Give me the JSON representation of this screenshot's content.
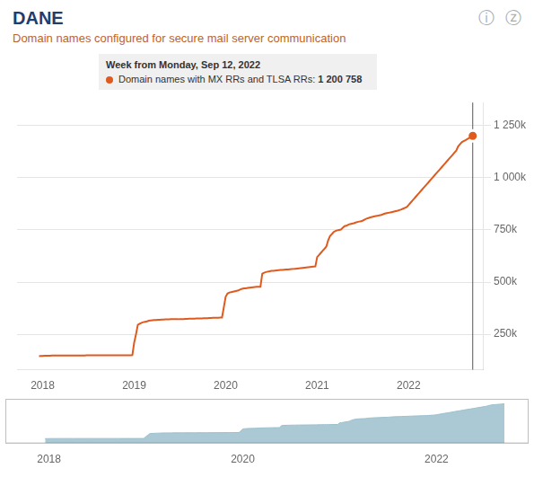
{
  "chart_data": [
    {
      "type": "line",
      "title": "DANE",
      "subtitle": "Domain names configured for secure mail server communication",
      "annotations": [
        "ⓘ",
        "ⓩ"
      ],
      "tooltip": {
        "title": "Week from Monday, Sep 12, 2022",
        "label": "Domain names with MX RRs and TLSA RRs: ",
        "value": 1200758,
        "value_label": "1 200 758"
      },
      "highlight": {
        "x": 2022.7,
        "y": 1200758
      },
      "color": "#e05a1e",
      "grid": "y",
      "xlim": [
        2017.72,
        2022.82
      ],
      "xticks": [
        2018,
        2019,
        2020,
        2021,
        2022
      ],
      "ylim": [
        80000,
        1360000
      ],
      "yticks": [
        {
          "value": 250000,
          "label": "250k"
        },
        {
          "value": 500000,
          "label": "500k"
        },
        {
          "value": 750000,
          "label": "750k"
        },
        {
          "value": 1000000,
          "label": "1 000k"
        },
        {
          "value": 1250000,
          "label": "1 250k"
        }
      ],
      "x": [
        2017.96,
        2017.98,
        2018.0,
        2018.02,
        2018.04,
        2018.06,
        2018.08,
        2018.1,
        2018.12,
        2018.14,
        2018.16,
        2018.18,
        2018.2,
        2018.22,
        2018.24,
        2018.26,
        2018.28,
        2018.3,
        2018.32,
        2018.34,
        2018.36,
        2018.38,
        2018.4,
        2018.42,
        2018.44,
        2018.46,
        2018.48,
        2018.5,
        2018.52,
        2018.54,
        2018.56,
        2018.58,
        2018.6,
        2018.62,
        2018.64,
        2018.66,
        2018.68,
        2018.7,
        2018.72,
        2018.74,
        2018.76,
        2018.78,
        2018.8,
        2018.82,
        2018.84,
        2018.86,
        2018.88,
        2018.9,
        2018.92,
        2018.94,
        2018.96,
        2018.98,
        2019.0,
        2019.02,
        2019.04,
        2019.06,
        2019.08,
        2019.1,
        2019.12,
        2019.14,
        2019.16,
        2019.18,
        2019.2,
        2019.22,
        2019.24,
        2019.26,
        2019.28,
        2019.3,
        2019.32,
        2019.34,
        2019.36,
        2019.38,
        2019.4,
        2019.42,
        2019.44,
        2019.46,
        2019.48,
        2019.5,
        2019.52,
        2019.54,
        2019.56,
        2019.58,
        2019.6,
        2019.62,
        2019.64,
        2019.66,
        2019.68,
        2019.7,
        2019.72,
        2019.74,
        2019.76,
        2019.78,
        2019.8,
        2019.82,
        2019.84,
        2019.86,
        2019.88,
        2019.9,
        2019.92,
        2019.94,
        2019.96,
        2019.98,
        2020.0,
        2020.02,
        2020.04,
        2020.06,
        2020.08,
        2020.1,
        2020.12,
        2020.14,
        2020.16,
        2020.18,
        2020.2,
        2020.22,
        2020.24,
        2020.26,
        2020.28,
        2020.3,
        2020.32,
        2020.34,
        2020.36,
        2020.38,
        2020.4,
        2020.42,
        2020.44,
        2020.46,
        2020.48,
        2020.5,
        2020.52,
        2020.54,
        2020.56,
        2020.58,
        2020.6,
        2020.62,
        2020.64,
        2020.66,
        2020.68,
        2020.7,
        2020.72,
        2020.74,
        2020.76,
        2020.78,
        2020.8,
        2020.82,
        2020.84,
        2020.86,
        2020.88,
        2020.9,
        2020.92,
        2020.94,
        2020.96,
        2020.98,
        2021.0,
        2021.02,
        2021.04,
        2021.06,
        2021.08,
        2021.1,
        2021.12,
        2021.14,
        2021.16,
        2021.18,
        2021.2,
        2021.22,
        2021.24,
        2021.26,
        2021.28,
        2021.3,
        2021.32,
        2021.34,
        2021.36,
        2021.38,
        2021.4,
        2021.42,
        2021.44,
        2021.46,
        2021.48,
        2021.5,
        2021.52,
        2021.54,
        2021.56,
        2021.58,
        2021.6,
        2021.62,
        2021.64,
        2021.66,
        2021.68,
        2021.7,
        2021.72,
        2021.74,
        2021.76,
        2021.78,
        2021.8,
        2021.82,
        2021.84,
        2021.86,
        2021.88,
        2021.9,
        2021.92,
        2021.94,
        2021.96,
        2021.98,
        2022.0,
        2022.02,
        2022.04,
        2022.06,
        2022.08,
        2022.1,
        2022.12,
        2022.14,
        2022.16,
        2022.18,
        2022.2,
        2022.22,
        2022.24,
        2022.26,
        2022.28,
        2022.3,
        2022.32,
        2022.34,
        2022.36,
        2022.38,
        2022.4,
        2022.42,
        2022.44,
        2022.46,
        2022.48,
        2022.5,
        2022.52,
        2022.54,
        2022.56,
        2022.58,
        2022.6,
        2022.62,
        2022.64,
        2022.66,
        2022.68,
        2022.7
      ],
      "values": [
        145000,
        146000,
        146000,
        147000,
        147000,
        147500,
        147500,
        148000,
        148000,
        148200,
        148200,
        148300,
        148300,
        148300,
        148400,
        148400,
        148500,
        148500,
        148500,
        148600,
        148600,
        148600,
        148700,
        148700,
        148700,
        148700,
        148800,
        148800,
        148800,
        148800,
        149000,
        149000,
        149000,
        149000,
        149000,
        149000,
        149000,
        149000,
        149000,
        149100,
        149100,
        149200,
        149200,
        149200,
        149300,
        149300,
        149400,
        149400,
        149500,
        149500,
        149500,
        150000,
        210000,
        250000,
        295000,
        300000,
        305000,
        308000,
        310000,
        312000,
        315000,
        316000,
        317000,
        318000,
        318500,
        319000,
        319500,
        320000,
        320500,
        321000,
        321000,
        321500,
        322000,
        322000,
        322000,
        322000,
        322000,
        323000,
        323000,
        323000,
        323500,
        324000,
        324500,
        324500,
        324500,
        325000,
        325500,
        325500,
        326000,
        326000,
        326500,
        327000,
        327000,
        327500,
        328000,
        328500,
        329000,
        329500,
        329500,
        330000,
        330000,
        380000,
        430000,
        445000,
        450000,
        452000,
        454000,
        456000,
        458000,
        460000,
        465000,
        468000,
        470000,
        470000,
        472000,
        473000,
        474000,
        475000,
        476000,
        477000,
        478000,
        478000,
        540000,
        545000,
        548000,
        550000,
        552000,
        554000,
        554000,
        555000,
        556000,
        557000,
        558000,
        558000,
        559000,
        560000,
        560000,
        561000,
        562000,
        563000,
        564000,
        565000,
        566000,
        567000,
        568000,
        569000,
        570000,
        571000,
        572000,
        573000,
        574000,
        575000,
        620000,
        630000,
        640000,
        650000,
        660000,
        670000,
        700000,
        720000,
        730000,
        740000,
        745000,
        748000,
        750000,
        752000,
        760000,
        768000,
        770000,
        775000,
        778000,
        780000,
        782000,
        785000,
        788000,
        790000,
        792000,
        795000,
        800000,
        804000,
        807000,
        810000,
        812000,
        814000,
        816000,
        818000,
        820000,
        822000,
        825000,
        828000,
        830000,
        832000,
        834000,
        836000,
        838000,
        840000,
        842000,
        845000,
        848000,
        852000,
        856000,
        860000,
        870000,
        880000,
        890000,
        900000,
        910000,
        920000,
        930000,
        940000,
        950000,
        960000,
        970000,
        980000,
        990000,
        1000000,
        1010000,
        1020000,
        1030000,
        1040000,
        1050000,
        1060000,
        1070000,
        1080000,
        1090000,
        1100000,
        1110000,
        1120000,
        1130000,
        1150000,
        1160000,
        1170000,
        1175000,
        1180000,
        1185000,
        1190000,
        1195000,
        1200758
      ]
    },
    {
      "type": "area",
      "color": "#9bbfcc",
      "grid": false,
      "tick_labels": "x",
      "xlim": [
        2017.55,
        2022.95
      ],
      "xticks": [
        2018,
        2020,
        2022
      ],
      "ylim": [
        0,
        1350000
      ],
      "x": [
        2017.96,
        2017.98,
        2018.0,
        2018.02,
        2018.04,
        2018.06,
        2018.08,
        2018.1,
        2018.12,
        2018.14,
        2018.16,
        2018.18,
        2018.2,
        2018.22,
        2018.24,
        2018.26,
        2018.28,
        2018.3,
        2018.32,
        2018.34,
        2018.36,
        2018.38,
        2018.4,
        2018.42,
        2018.44,
        2018.46,
        2018.48,
        2018.5,
        2018.52,
        2018.54,
        2018.56,
        2018.58,
        2018.6,
        2018.62,
        2018.64,
        2018.66,
        2018.68,
        2018.7,
        2018.72,
        2018.74,
        2018.76,
        2018.78,
        2018.8,
        2018.82,
        2018.84,
        2018.86,
        2018.88,
        2018.9,
        2018.92,
        2018.94,
        2018.96,
        2018.98,
        2019.0,
        2019.02,
        2019.04,
        2019.06,
        2019.08,
        2019.1,
        2019.12,
        2019.14,
        2019.16,
        2019.18,
        2019.2,
        2019.22,
        2019.24,
        2019.26,
        2019.28,
        2019.3,
        2019.32,
        2019.34,
        2019.36,
        2019.38,
        2019.4,
        2019.42,
        2019.44,
        2019.46,
        2019.48,
        2019.5,
        2019.52,
        2019.54,
        2019.56,
        2019.58,
        2019.6,
        2019.62,
        2019.64,
        2019.66,
        2019.68,
        2019.7,
        2019.72,
        2019.74,
        2019.76,
        2019.78,
        2019.8,
        2019.82,
        2019.84,
        2019.86,
        2019.88,
        2019.9,
        2019.92,
        2019.94,
        2019.96,
        2019.98,
        2020.0,
        2020.02,
        2020.04,
        2020.06,
        2020.08,
        2020.1,
        2020.12,
        2020.14,
        2020.16,
        2020.18,
        2020.2,
        2020.22,
        2020.24,
        2020.26,
        2020.28,
        2020.3,
        2020.32,
        2020.34,
        2020.36,
        2020.38,
        2020.4,
        2020.42,
        2020.44,
        2020.46,
        2020.48,
        2020.5,
        2020.52,
        2020.54,
        2020.56,
        2020.58,
        2020.6,
        2020.62,
        2020.64,
        2020.66,
        2020.68,
        2020.7,
        2020.72,
        2020.74,
        2020.76,
        2020.78,
        2020.8,
        2020.82,
        2020.84,
        2020.86,
        2020.88,
        2020.9,
        2020.92,
        2020.94,
        2020.96,
        2020.98,
        2021.0,
        2021.02,
        2021.04,
        2021.06,
        2021.08,
        2021.1,
        2021.12,
        2021.14,
        2021.16,
        2021.18,
        2021.2,
        2021.22,
        2021.24,
        2021.26,
        2021.28,
        2021.3,
        2021.32,
        2021.34,
        2021.36,
        2021.38,
        2021.4,
        2021.42,
        2021.44,
        2021.46,
        2021.48,
        2021.5,
        2021.52,
        2021.54,
        2021.56,
        2021.58,
        2021.6,
        2021.62,
        2021.64,
        2021.66,
        2021.68,
        2021.7,
        2021.72,
        2021.74,
        2021.76,
        2021.78,
        2021.8,
        2021.82,
        2021.84,
        2021.86,
        2021.88,
        2021.9,
        2021.92,
        2021.94,
        2021.96,
        2021.98,
        2022.0,
        2022.02,
        2022.04,
        2022.06,
        2022.08,
        2022.1,
        2022.12,
        2022.14,
        2022.16,
        2022.18,
        2022.2,
        2022.22,
        2022.24,
        2022.26,
        2022.28,
        2022.3,
        2022.32,
        2022.34,
        2022.36,
        2022.38,
        2022.4,
        2022.42,
        2022.44,
        2022.46,
        2022.48,
        2022.5,
        2022.52,
        2022.54,
        2022.56,
        2022.58,
        2022.6,
        2022.62,
        2022.64,
        2022.66,
        2022.68,
        2022.7
      ],
      "values": [
        145000,
        146000,
        146000,
        147000,
        147000,
        147500,
        147500,
        148000,
        148000,
        148200,
        148200,
        148300,
        148300,
        148300,
        148400,
        148400,
        148500,
        148500,
        148500,
        148600,
        148600,
        148600,
        148700,
        148700,
        148700,
        148700,
        148800,
        148800,
        148800,
        148800,
        149000,
        149000,
        149000,
        149000,
        149000,
        149000,
        149000,
        149000,
        149000,
        149100,
        149100,
        149200,
        149200,
        149200,
        149300,
        149300,
        149400,
        149400,
        149500,
        149500,
        149500,
        150000,
        210000,
        250000,
        295000,
        300000,
        305000,
        308000,
        310000,
        312000,
        315000,
        316000,
        317000,
        318000,
        318500,
        319000,
        319500,
        320000,
        320500,
        321000,
        321000,
        321500,
        322000,
        322000,
        322000,
        322000,
        322000,
        323000,
        323000,
        323000,
        323500,
        324000,
        324500,
        324500,
        324500,
        325000,
        325500,
        325500,
        326000,
        326000,
        326500,
        327000,
        327000,
        327500,
        328000,
        328500,
        329000,
        329500,
        329500,
        330000,
        330000,
        380000,
        430000,
        445000,
        450000,
        452000,
        454000,
        456000,
        458000,
        460000,
        465000,
        468000,
        470000,
        470000,
        472000,
        473000,
        474000,
        475000,
        476000,
        477000,
        478000,
        478000,
        540000,
        545000,
        548000,
        550000,
        552000,
        554000,
        554000,
        555000,
        556000,
        557000,
        558000,
        558000,
        559000,
        560000,
        560000,
        561000,
        562000,
        563000,
        564000,
        565000,
        566000,
        567000,
        568000,
        569000,
        570000,
        571000,
        572000,
        573000,
        574000,
        575000,
        620000,
        630000,
        640000,
        650000,
        660000,
        670000,
        700000,
        720000,
        730000,
        740000,
        745000,
        748000,
        750000,
        752000,
        760000,
        768000,
        770000,
        775000,
        778000,
        780000,
        782000,
        785000,
        788000,
        790000,
        792000,
        795000,
        800000,
        804000,
        807000,
        810000,
        812000,
        814000,
        816000,
        818000,
        820000,
        822000,
        825000,
        828000,
        830000,
        832000,
        834000,
        836000,
        838000,
        840000,
        842000,
        845000,
        848000,
        852000,
        856000,
        860000,
        870000,
        880000,
        890000,
        900000,
        910000,
        920000,
        930000,
        940000,
        950000,
        960000,
        970000,
        980000,
        990000,
        1000000,
        1010000,
        1020000,
        1030000,
        1040000,
        1050000,
        1060000,
        1070000,
        1080000,
        1090000,
        1100000,
        1110000,
        1120000,
        1130000,
        1150000,
        1160000,
        1170000,
        1175000,
        1180000,
        1185000,
        1190000,
        1195000,
        1200758
      ]
    }
  ]
}
